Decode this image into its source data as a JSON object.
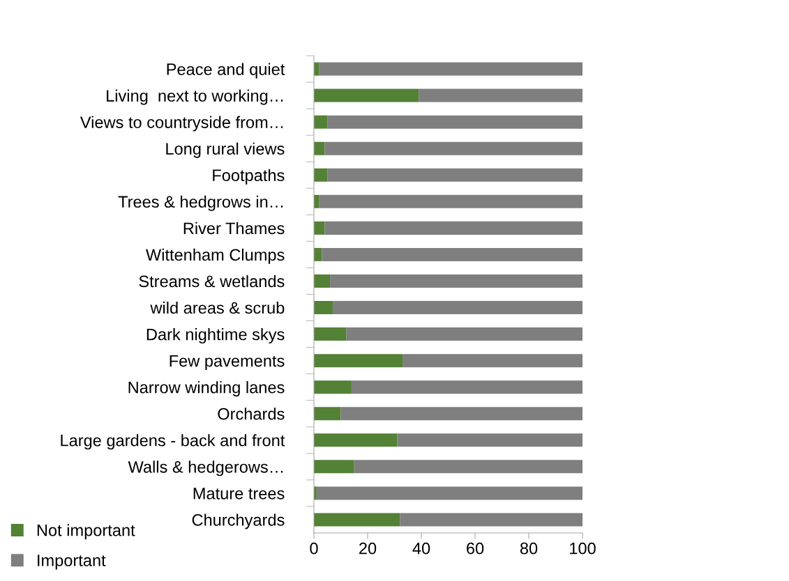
{
  "chart_data": {
    "type": "bar",
    "orientation": "horizontal",
    "stacked": true,
    "categories": [
      "Peace and quiet",
      "Living  next to working…",
      "Views to countryside from…",
      "Long rural views",
      "Footpaths",
      "Trees & hedgrows in…",
      "River Thames",
      "Wittenham Clumps",
      "Streams & wetlands",
      "wild areas & scrub",
      "Dark nightime skys",
      "Few pavements",
      "Narrow winding lanes",
      "Orchards",
      "Large gardens - back and front",
      "Walls & hedgerows…",
      "Mature trees",
      "Churchyards"
    ],
    "series": [
      {
        "name": "Not important",
        "color": "#538135",
        "values": [
          2,
          39,
          5,
          4,
          5,
          2,
          4,
          3,
          6,
          7,
          12,
          33,
          14,
          10,
          31,
          15,
          1,
          32
        ]
      },
      {
        "name": "Important",
        "color": "#7f7f7f",
        "values": [
          98,
          61,
          95,
          96,
          95,
          98,
          96,
          97,
          94,
          93,
          88,
          67,
          86,
          90,
          69,
          85,
          99,
          68
        ]
      }
    ],
    "xlim": [
      0,
      100
    ],
    "xticks": [
      0,
      20,
      40,
      60,
      80,
      100
    ],
    "grid": false,
    "legend": "bottom left"
  }
}
